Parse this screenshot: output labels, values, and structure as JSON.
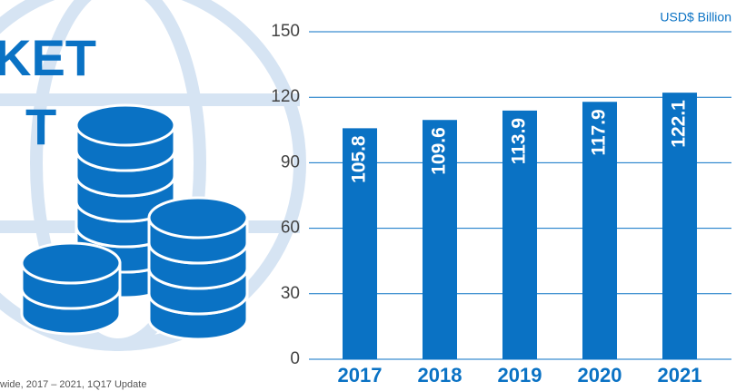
{
  "side_text": {
    "title_lines": [
      "KET",
      "T"
    ],
    "source": "wide, 2017 – 2021, 1Q17 Update"
  },
  "chart_data": {
    "type": "bar",
    "unit_label": "USD$ Billion",
    "categories": [
      "2017",
      "2018",
      "2019",
      "2020",
      "2021"
    ],
    "values": [
      105.8,
      109.6,
      113.9,
      117.9,
      122.1
    ],
    "color": "#0a72c4",
    "ylim": [
      0,
      150
    ],
    "yticks": [
      0,
      30,
      60,
      90,
      120,
      150
    ],
    "grid": true
  }
}
